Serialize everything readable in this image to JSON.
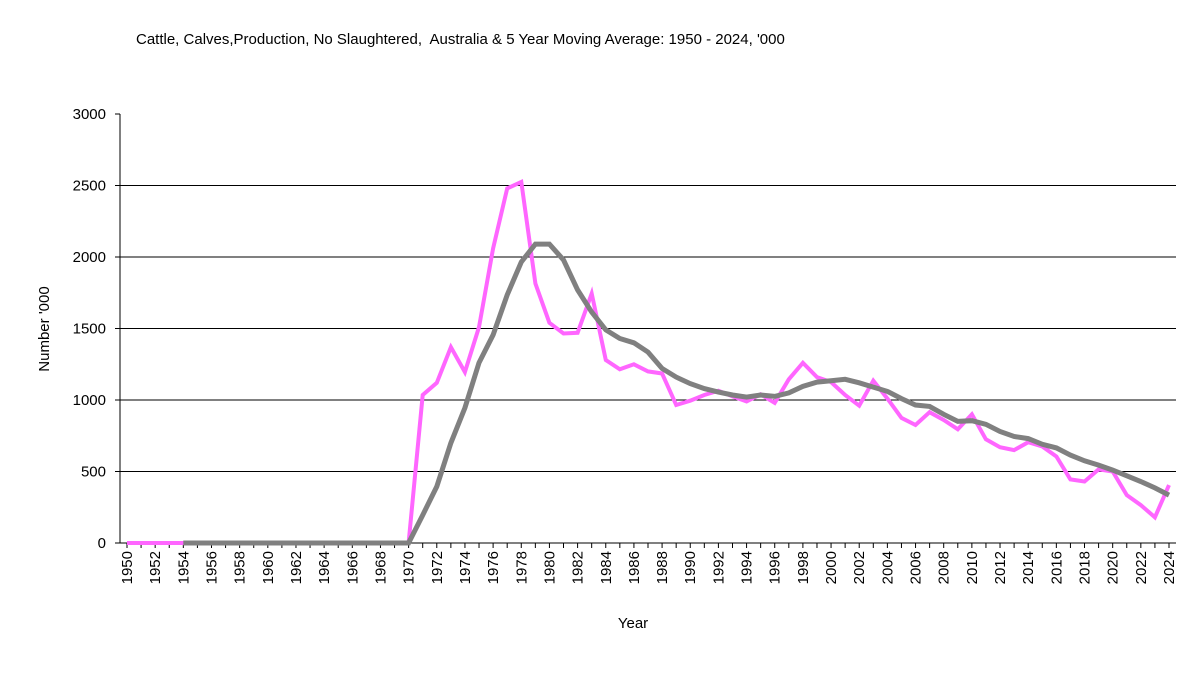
{
  "chart_data": {
    "type": "line",
    "title": "Cattle, Calves,Production, No Slaughtered,  Australia & 5 Year Moving Average: 1950 - 2024, '000",
    "xlabel": "Year",
    "ylabel": "Number '000",
    "ylim": [
      0,
      3000
    ],
    "yticks": [
      0,
      500,
      1000,
      1500,
      2000,
      2500,
      3000
    ],
    "xlim": [
      1950,
      2024
    ],
    "xtick_labels": [
      "1950",
      "1952",
      "1954",
      "1956",
      "1958",
      "1960",
      "1962",
      "1964",
      "1966",
      "1968",
      "1970",
      "1972",
      "1974",
      "1976",
      "1978",
      "1980",
      "1982",
      "1984",
      "1986",
      "1988",
      "1990",
      "1992",
      "1994",
      "1996",
      "1998",
      "2000",
      "2002",
      "2004",
      "2006",
      "2008",
      "2010",
      "2012",
      "2014",
      "2016",
      "2018",
      "2020",
      "2022",
      "2024"
    ],
    "grid": true,
    "legend": "none",
    "x": [
      1950,
      1951,
      1952,
      1953,
      1954,
      1955,
      1956,
      1957,
      1958,
      1959,
      1960,
      1961,
      1962,
      1963,
      1964,
      1965,
      1966,
      1967,
      1968,
      1969,
      1970,
      1971,
      1972,
      1973,
      1974,
      1975,
      1976,
      1977,
      1978,
      1979,
      1980,
      1981,
      1982,
      1983,
      1984,
      1985,
      1986,
      1987,
      1988,
      1989,
      1990,
      1991,
      1992,
      1993,
      1994,
      1995,
      1996,
      1997,
      1998,
      1999,
      2000,
      2001,
      2002,
      2003,
      2004,
      2005,
      2006,
      2007,
      2008,
      2009,
      2010,
      2011,
      2012,
      2013,
      2014,
      2015,
      2016,
      2017,
      2018,
      2019,
      2020,
      2021,
      2022,
      2023,
      2024
    ],
    "series": [
      {
        "name": "Cattle, Calves, No Slaughtered",
        "color": "#FF66FF",
        "values": [
          0,
          0,
          0,
          0,
          0,
          0,
          0,
          0,
          0,
          0,
          0,
          0,
          0,
          0,
          0,
          0,
          0,
          0,
          0,
          0,
          0,
          1035,
          1120,
          1370,
          1195,
          1510,
          2060,
          2480,
          2525,
          1815,
          1540,
          1465,
          1470,
          1745,
          1280,
          1215,
          1250,
          1200,
          1185,
          965,
          995,
          1035,
          1065,
          1025,
          990,
          1040,
          980,
          1145,
          1260,
          1160,
          1125,
          1035,
          960,
          1135,
          1010,
          875,
          825,
          915,
          860,
          795,
          900,
          725,
          670,
          650,
          705,
          675,
          605,
          445,
          430,
          515,
          500,
          335,
          265,
          180,
          405
        ]
      },
      {
        "name": "5 Year Moving Average",
        "color": "#808080",
        "values": [
          null,
          null,
          null,
          null,
          0,
          0,
          0,
          0,
          0,
          0,
          0,
          0,
          0,
          0,
          0,
          0,
          0,
          0,
          0,
          0,
          0,
          195,
          395,
          700,
          945,
          1260,
          1455,
          1735,
          1965,
          2090,
          2090,
          1980,
          1770,
          1615,
          1490,
          1430,
          1400,
          1335,
          1220,
          1160,
          1115,
          1080,
          1055,
          1035,
          1020,
          1035,
          1025,
          1050,
          1095,
          1125,
          1135,
          1145,
          1120,
          1090,
          1060,
          1010,
          965,
          955,
          900,
          850,
          855,
          830,
          780,
          745,
          730,
          690,
          665,
          615,
          575,
          545,
          510,
          470,
          430,
          385,
          335
        ]
      }
    ]
  }
}
